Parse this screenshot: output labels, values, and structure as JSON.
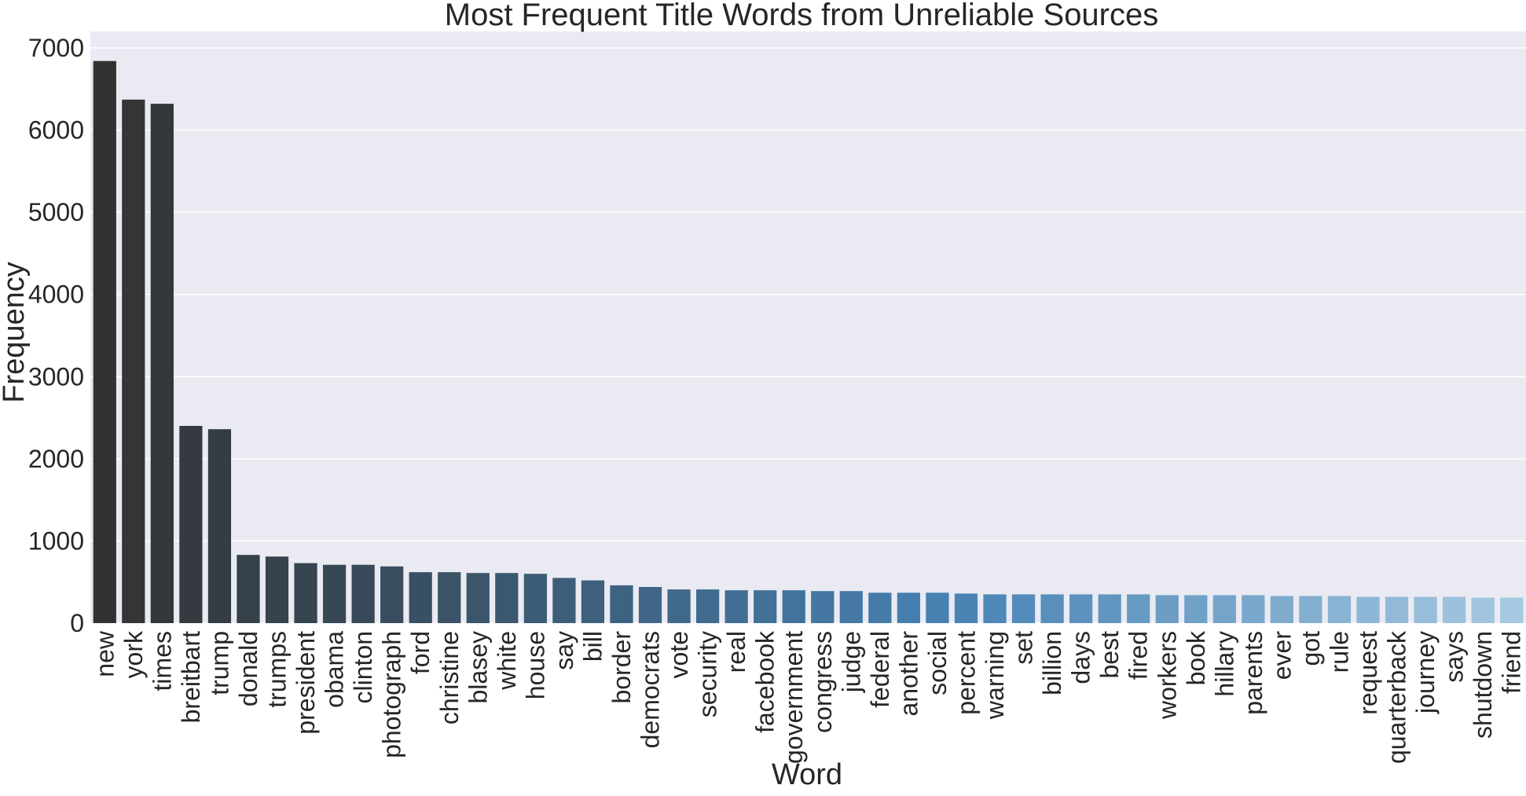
{
  "chart_data": {
    "type": "bar",
    "title": "Most Frequent Title Words from Unreliable Sources",
    "xlabel": "Word",
    "ylabel": "Frequency",
    "ylim": [
      0,
      7200
    ],
    "yticks": [
      0,
      1000,
      2000,
      3000,
      4000,
      5000,
      6000,
      7000
    ],
    "grid": true,
    "palette": "Blues_d (dark slate to light blue)",
    "colors": {
      "background": "#eaeaf2",
      "grid": "#ffffff",
      "bar_dark": "#323232",
      "bar_light": "#a6c8e1"
    },
    "categories": [
      "new",
      "york",
      "times",
      "breitbart",
      "trump",
      "donald",
      "trumps",
      "president",
      "obama",
      "clinton",
      "photograph",
      "ford",
      "christine",
      "blasey",
      "white",
      "house",
      "say",
      "bill",
      "border",
      "democrats",
      "vote",
      "security",
      "real",
      "facebook",
      "government",
      "congress",
      "judge",
      "federal",
      "another",
      "social",
      "percent",
      "warning",
      "set",
      "billion",
      "days",
      "best",
      "fired",
      "workers",
      "book",
      "hillary",
      "parents",
      "ever",
      "got",
      "rule",
      "request",
      "quarterback",
      "journey",
      "says",
      "shutdown",
      "friend"
    ],
    "values": [
      6840,
      6370,
      6320,
      2400,
      2360,
      830,
      810,
      730,
      710,
      710,
      690,
      620,
      620,
      610,
      610,
      600,
      550,
      520,
      460,
      440,
      410,
      410,
      400,
      400,
      400,
      390,
      390,
      370,
      370,
      370,
      360,
      350,
      350,
      350,
      350,
      350,
      350,
      340,
      340,
      340,
      340,
      330,
      330,
      330,
      320,
      320,
      320,
      320,
      310,
      310
    ]
  }
}
